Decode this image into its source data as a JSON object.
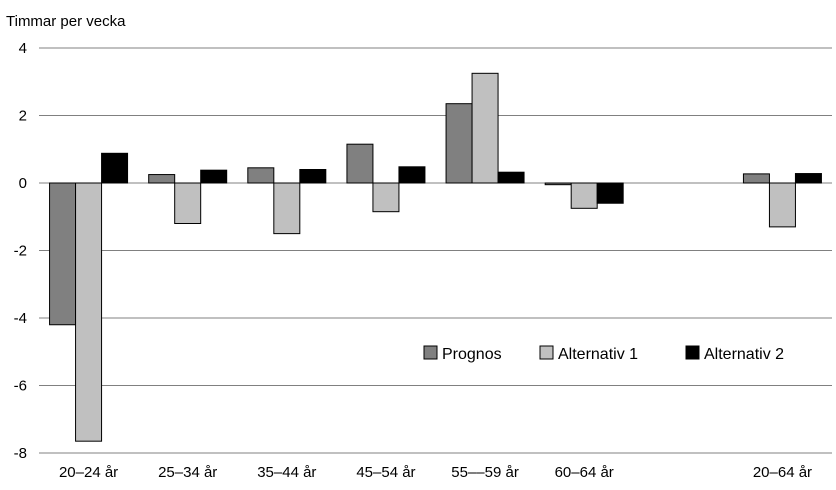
{
  "chart_data": {
    "type": "bar",
    "ylabel": "Timmar per vecka",
    "ylim": [
      -8,
      4
    ],
    "yticks": [
      4,
      2,
      0,
      -2,
      -4,
      -6,
      -8
    ],
    "grid": true,
    "legend_position": "lower-right",
    "categories": [
      "20–24 år",
      "25–34 år",
      "35–44 år",
      "45–54 år",
      "55––59 år",
      "60–64 år",
      "",
      "20–64 år"
    ],
    "series": [
      {
        "name": "Prognos",
        "color": "#808080",
        "values": [
          -4.2,
          0.25,
          0.45,
          1.15,
          2.35,
          -0.05,
          null,
          0.27
        ]
      },
      {
        "name": "Alternativ 1",
        "color": "#c0c0c0",
        "values": [
          -7.65,
          -1.2,
          -1.5,
          -0.85,
          3.25,
          -0.75,
          null,
          -1.3
        ]
      },
      {
        "name": "Alternativ 2",
        "color": "#000000",
        "values": [
          0.88,
          0.38,
          0.4,
          0.48,
          0.32,
          -0.6,
          null,
          0.28
        ]
      }
    ]
  }
}
